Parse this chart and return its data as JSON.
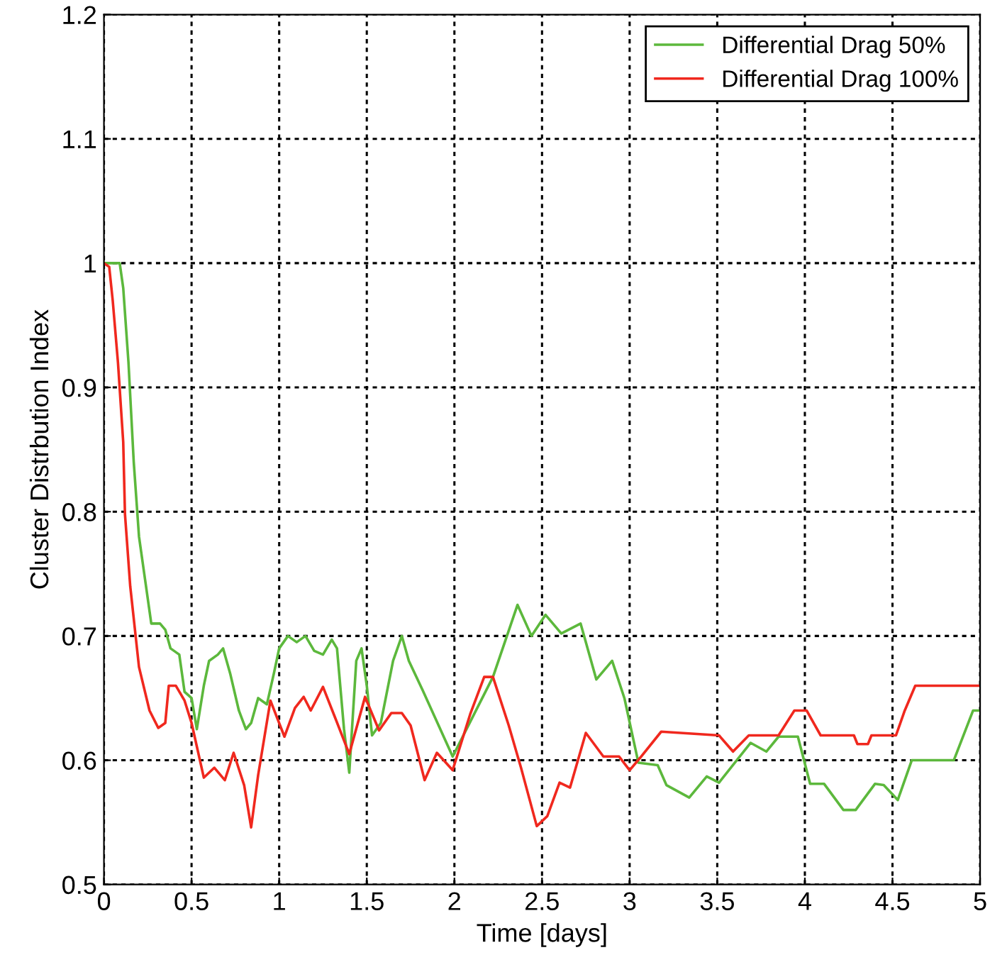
{
  "chart_data": {
    "type": "line",
    "xlabel": "Time [days]",
    "ylabel": "Cluster Distrbution Index",
    "xlim": [
      0,
      5
    ],
    "ylim": [
      0.5,
      1.2
    ],
    "xticks": [
      0,
      0.5,
      1,
      1.5,
      2,
      2.5,
      3,
      3.5,
      4,
      4.5,
      5
    ],
    "yticks": [
      0.5,
      0.6,
      0.7,
      0.8,
      0.9,
      1,
      1.1,
      1.2
    ],
    "grid": true,
    "legend": "top right",
    "line_style": "solid",
    "marker": "none",
    "series": [
      {
        "name": "Differential Drag 50%",
        "color": "#5cb83c",
        "x": [
          0,
          0.09,
          0.11,
          0.14,
          0.17,
          0.2,
          0.24,
          0.27,
          0.32,
          0.35,
          0.38,
          0.43,
          0.46,
          0.5,
          0.53,
          0.57,
          0.6,
          0.65,
          0.68,
          0.72,
          0.77,
          0.81,
          0.84,
          0.88,
          0.93,
          0.97,
          1.0,
          1.05,
          1.1,
          1.15,
          1.2,
          1.25,
          1.3,
          1.33,
          1.37,
          1.4,
          1.44,
          1.47,
          1.5,
          1.53,
          1.58,
          1.65,
          1.7,
          1.74,
          1.82,
          1.99,
          2.22,
          2.36,
          2.44,
          2.52,
          2.61,
          2.72,
          2.81,
          2.9,
          2.97,
          3.05,
          3.16,
          3.21,
          3.34,
          3.44,
          3.51,
          3.69,
          3.78,
          3.85,
          3.96,
          4.03,
          4.11,
          4.22,
          4.29,
          4.4,
          4.45,
          4.53,
          4.61,
          4.85,
          4.96,
          5.0
        ],
        "values": [
          1.0,
          1.0,
          0.98,
          0.92,
          0.84,
          0.78,
          0.74,
          0.71,
          0.71,
          0.705,
          0.69,
          0.685,
          0.655,
          0.65,
          0.625,
          0.66,
          0.68,
          0.685,
          0.69,
          0.67,
          0.64,
          0.625,
          0.63,
          0.65,
          0.645,
          0.67,
          0.69,
          0.7,
          0.695,
          0.7,
          0.688,
          0.685,
          0.697,
          0.69,
          0.625,
          0.59,
          0.68,
          0.69,
          0.66,
          0.62,
          0.63,
          0.68,
          0.7,
          0.68,
          0.656,
          0.603,
          0.667,
          0.725,
          0.7,
          0.717,
          0.702,
          0.71,
          0.665,
          0.68,
          0.65,
          0.598,
          0.596,
          0.58,
          0.57,
          0.587,
          0.582,
          0.614,
          0.607,
          0.619,
          0.619,
          0.581,
          0.581,
          0.56,
          0.56,
          0.581,
          0.58,
          0.568,
          0.6,
          0.6,
          0.64,
          0.64
        ]
      },
      {
        "name": "Differential Drag 100%",
        "color": "#f0281e",
        "x": [
          0,
          0.03,
          0.05,
          0.08,
          0.11,
          0.12,
          0.15,
          0.2,
          0.26,
          0.31,
          0.35,
          0.37,
          0.41,
          0.46,
          0.5,
          0.57,
          0.63,
          0.69,
          0.74,
          0.8,
          0.84,
          0.88,
          0.95,
          1.03,
          1.09,
          1.14,
          1.18,
          1.25,
          1.32,
          1.4,
          1.49,
          1.57,
          1.64,
          1.7,
          1.75,
          1.83,
          1.9,
          1.99,
          2.09,
          2.17,
          2.22,
          2.31,
          2.38,
          2.47,
          2.53,
          2.6,
          2.66,
          2.75,
          2.85,
          2.94,
          3.0,
          3.06,
          3.18,
          3.51,
          3.59,
          3.68,
          3.85,
          3.94,
          4.01,
          4.09,
          4.28,
          4.3,
          4.36,
          4.38,
          4.52,
          4.57,
          4.63,
          5.0
        ],
        "values": [
          1.0,
          0.997,
          0.97,
          0.92,
          0.856,
          0.798,
          0.74,
          0.675,
          0.64,
          0.626,
          0.63,
          0.66,
          0.66,
          0.648,
          0.63,
          0.586,
          0.594,
          0.584,
          0.606,
          0.58,
          0.546,
          0.588,
          0.648,
          0.619,
          0.642,
          0.651,
          0.64,
          0.659,
          0.634,
          0.605,
          0.651,
          0.624,
          0.638,
          0.638,
          0.628,
          0.584,
          0.606,
          0.592,
          0.637,
          0.667,
          0.667,
          0.628,
          0.594,
          0.547,
          0.555,
          0.582,
          0.578,
          0.622,
          0.603,
          0.603,
          0.592,
          0.602,
          0.623,
          0.62,
          0.607,
          0.62,
          0.62,
          0.64,
          0.64,
          0.62,
          0.62,
          0.613,
          0.613,
          0.62,
          0.62,
          0.64,
          0.66,
          0.66
        ]
      }
    ]
  }
}
